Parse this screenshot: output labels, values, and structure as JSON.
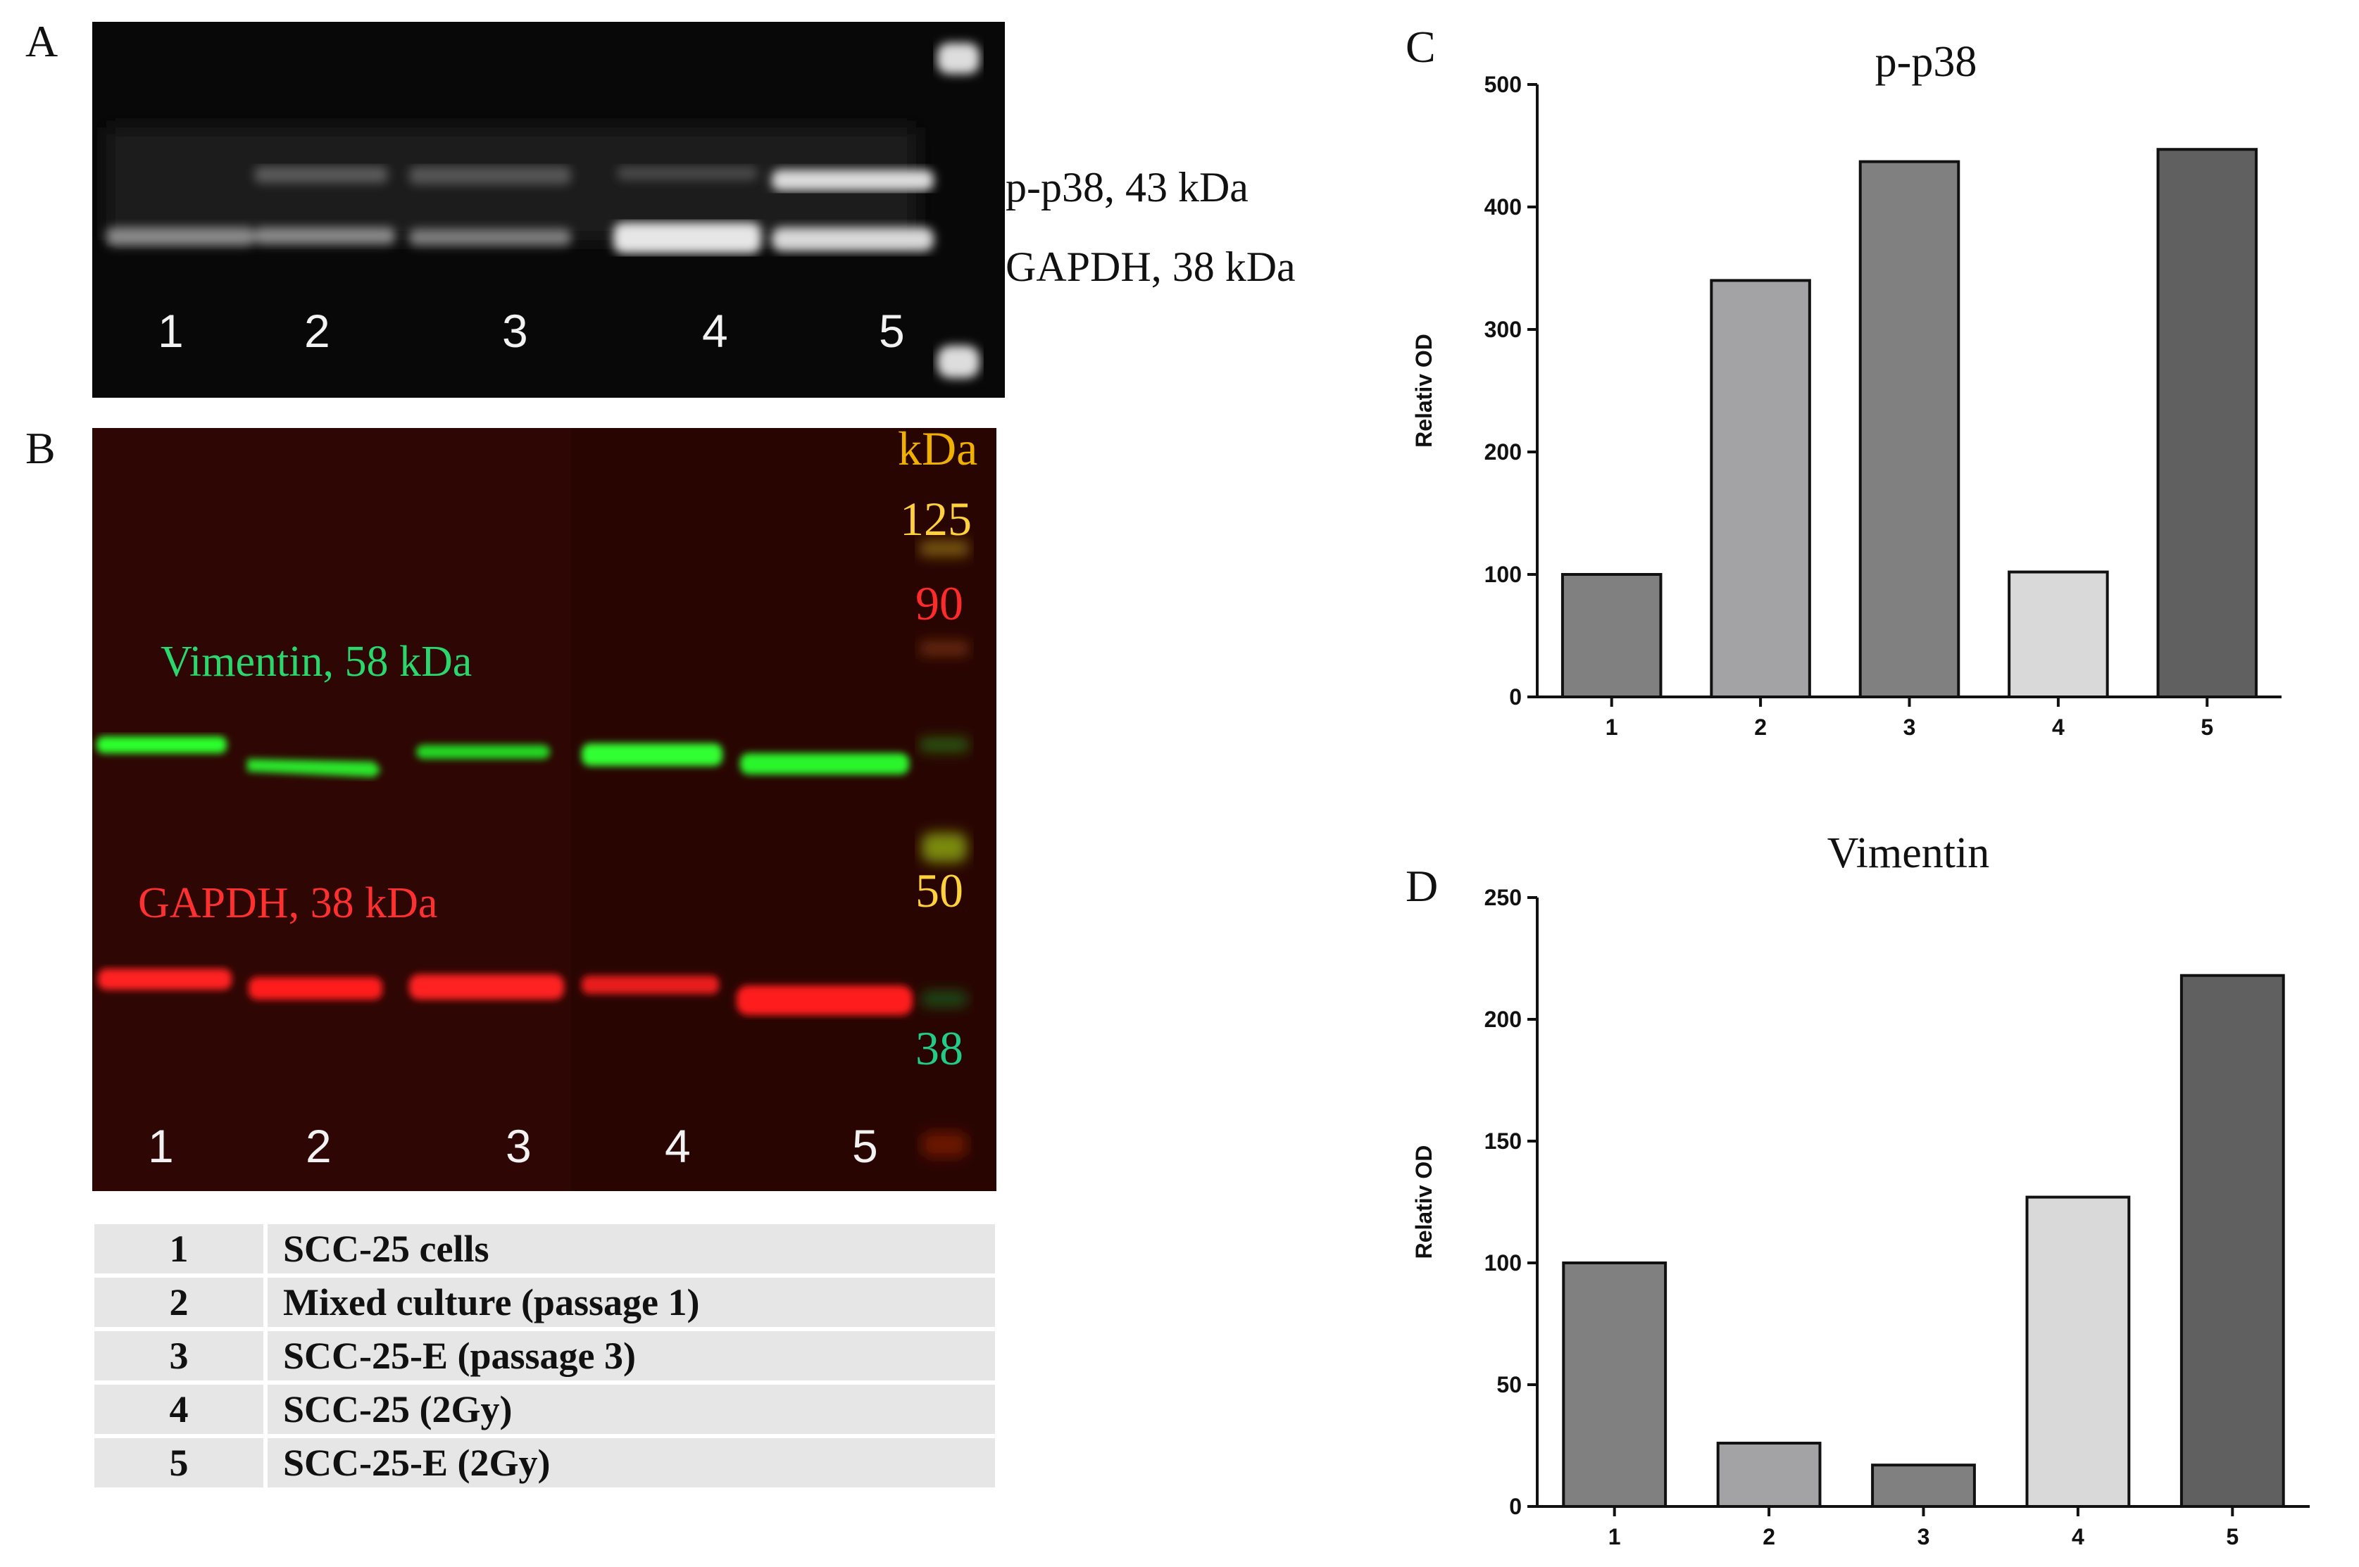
{
  "panels": {
    "A": {
      "letter": "A",
      "lanes": [
        "1",
        "2",
        "3",
        "4",
        "5"
      ],
      "band_labels": [
        "p-p38, 43 kDa",
        "GAPDH,  38 kDa"
      ]
    },
    "B": {
      "letter": "B",
      "lanes": [
        "1",
        "2",
        "3",
        "4",
        "5"
      ],
      "labels": {
        "vimentin": "Vimentin,  58 kDa",
        "gapdh": "GAPDH,  38 kDa"
      },
      "markers": [
        {
          "text": "kDa",
          "color": "#f0b000"
        },
        {
          "text": "125",
          "color": "#ffd23c"
        },
        {
          "text": "90",
          "color": "#ff2a2a"
        },
        {
          "text": "50",
          "color": "#ffd23c"
        },
        {
          "text": "38",
          "color": "#22cc88"
        }
      ]
    },
    "C": {
      "letter": "C"
    },
    "D": {
      "letter": "D"
    }
  },
  "legend": [
    {
      "num": "1",
      "text": "SCC-25 cells"
    },
    {
      "num": "2",
      "text": "Mixed culture (passage 1)"
    },
    {
      "num": "3",
      "text": "SCC-25-E (passage 3)"
    },
    {
      "num": "4",
      "text": "SCC-25 (2Gy)"
    },
    {
      "num": "5",
      "text": "SCC-25-E (2Gy)"
    }
  ],
  "chart_data": [
    {
      "type": "bar",
      "title": "p-p38",
      "ylabel": "Relativ OD",
      "xlabel": "",
      "categories": [
        "1",
        "2",
        "3",
        "4",
        "5"
      ],
      "values": [
        100,
        340,
        437,
        102,
        447
      ],
      "ylim": [
        0,
        500
      ],
      "yticks": [
        0,
        100,
        200,
        300,
        400,
        500
      ],
      "colors": [
        "#808080",
        "#a3a3a6",
        "#808080",
        "#d9d9d9",
        "#606060"
      ],
      "grid": false
    },
    {
      "type": "bar",
      "title": "Vimentin",
      "ylabel": "Relativ OD",
      "xlabel": "",
      "categories": [
        "1",
        "2",
        "3",
        "4",
        "5"
      ],
      "values": [
        100,
        26,
        17,
        127,
        218
      ],
      "ylim": [
        0,
        250
      ],
      "yticks": [
        0,
        50,
        100,
        150,
        200,
        250
      ],
      "colors": [
        "#808080",
        "#a3a3a6",
        "#808080",
        "#d9d9d9",
        "#606060"
      ],
      "grid": false
    }
  ]
}
